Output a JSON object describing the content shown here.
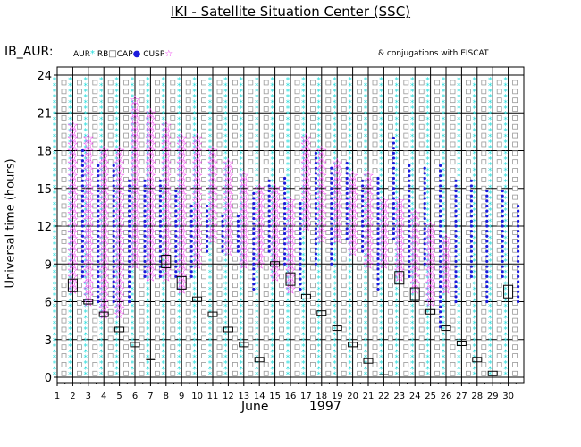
{
  "title": "IKI - Satellite Situation Center (SSC)",
  "header_label": "IB_AUR:",
  "legend": {
    "aur": "AUR",
    "rb": "RB",
    "cap": "CAP",
    "cusp": "CUSP",
    "colors": {
      "aur": "#22dddd",
      "rb": "#999999",
      "cap": "#1a1adc",
      "cusp": "#ee22ee"
    }
  },
  "conjugations_note": "& conjugations with EISCAT",
  "chart_data": {
    "type": "scatter",
    "ylabel": "Universal time (hours)",
    "xlabel_month": "June",
    "xlabel_year": "1997",
    "x_ticks": [
      1,
      2,
      3,
      4,
      5,
      6,
      7,
      8,
      9,
      10,
      11,
      12,
      13,
      14,
      15,
      16,
      17,
      18,
      19,
      20,
      21,
      22,
      23,
      24,
      25,
      26,
      27,
      28,
      29,
      30
    ],
    "y_ticks": [
      0,
      3,
      6,
      9,
      12,
      15,
      18,
      21,
      24
    ],
    "xlim": [
      1,
      31
    ],
    "ylim": [
      0,
      24
    ],
    "grid": true,
    "cusp_intervals": [
      {
        "day": 2,
        "start": 7,
        "end": 20
      },
      {
        "day": 3,
        "start": 6,
        "end": 19
      },
      {
        "day": 4,
        "start": 5,
        "end": 18
      },
      {
        "day": 5,
        "start": 5,
        "end": 18
      },
      {
        "day": 6,
        "start": 9,
        "end": 22
      },
      {
        "day": 7,
        "start": 8,
        "end": 21
      },
      {
        "day": 8,
        "start": 8,
        "end": 20
      },
      {
        "day": 9,
        "start": 7,
        "end": 19
      },
      {
        "day": 10,
        "start": 9,
        "end": 19
      },
      {
        "day": 11,
        "start": 11,
        "end": 18
      },
      {
        "day": 12,
        "start": 10,
        "end": 17
      },
      {
        "day": 13,
        "start": 9,
        "end": 16
      },
      {
        "day": 14,
        "start": 9,
        "end": 15
      },
      {
        "day": 15,
        "start": 8,
        "end": 15
      },
      {
        "day": 16,
        "start": 7,
        "end": 14
      },
      {
        "day": 17,
        "start": 12,
        "end": 19
      },
      {
        "day": 18,
        "start": 11,
        "end": 18
      },
      {
        "day": 19,
        "start": 11,
        "end": 17
      },
      {
        "day": 20,
        "start": 10,
        "end": 16
      },
      {
        "day": 21,
        "start": 9,
        "end": 16
      },
      {
        "day": 22,
        "start": 9,
        "end": 14
      },
      {
        "day": 23,
        "start": 8,
        "end": 14
      },
      {
        "day": 24,
        "start": 7,
        "end": 13
      },
      {
        "day": 25,
        "start": 6,
        "end": 12
      },
      {
        "day": 26,
        "start": 7,
        "end": 11
      }
    ],
    "cap_intervals": [
      {
        "day": 2,
        "start": 8,
        "end": 18
      },
      {
        "day": 3,
        "start": 6,
        "end": 17
      },
      {
        "day": 4,
        "start": 6,
        "end": 17
      },
      {
        "day": 5,
        "start": 6,
        "end": 16
      },
      {
        "day": 6,
        "start": 8,
        "end": 16
      },
      {
        "day": 7,
        "start": 8,
        "end": 16
      },
      {
        "day": 8,
        "start": 8,
        "end": 15
      },
      {
        "day": 9,
        "start": 8,
        "end": 14
      },
      {
        "day": 10,
        "start": 10,
        "end": 14
      },
      {
        "day": 11,
        "start": 10,
        "end": 13
      },
      {
        "day": 12,
        "start": 10,
        "end": 13
      },
      {
        "day": 13,
        "start": 7,
        "end": 15
      },
      {
        "day": 14,
        "start": 10,
        "end": 16
      },
      {
        "day": 15,
        "start": 9,
        "end": 16
      },
      {
        "day": 16,
        "start": 7,
        "end": 14
      },
      {
        "day": 17,
        "start": 9,
        "end": 18
      },
      {
        "day": 18,
        "start": 9,
        "end": 17
      },
      {
        "day": 19,
        "start": 11,
        "end": 17
      },
      {
        "day": 20,
        "start": 10,
        "end": 16
      },
      {
        "day": 21,
        "start": 7,
        "end": 16
      },
      {
        "day": 22,
        "start": 11,
        "end": 19
      },
      {
        "day": 23,
        "start": 8,
        "end": 17
      },
      {
        "day": 24,
        "start": 9,
        "end": 17
      },
      {
        "day": 25,
        "start": 4,
        "end": 17
      },
      {
        "day": 26,
        "start": 6,
        "end": 16
      },
      {
        "day": 27,
        "start": 8,
        "end": 16
      },
      {
        "day": 28,
        "start": 6,
        "end": 15
      },
      {
        "day": 29,
        "start": 8,
        "end": 15
      },
      {
        "day": 30,
        "start": 6,
        "end": 14
      }
    ],
    "eiscat_conjugations": [
      {
        "day": 2,
        "time": 7.3,
        "size": "large"
      },
      {
        "day": 3,
        "time": 6.0,
        "size": "small"
      },
      {
        "day": 4,
        "time": 5.0,
        "size": "small"
      },
      {
        "day": 5,
        "time": 3.8,
        "size": "small"
      },
      {
        "day": 6,
        "time": 2.6,
        "size": "small"
      },
      {
        "day": 7,
        "time": 1.4,
        "size": "line"
      },
      {
        "day": 8,
        "time": 9.2,
        "size": "large"
      },
      {
        "day": 9,
        "time": 7.5,
        "size": "large"
      },
      {
        "day": 10,
        "time": 6.2,
        "size": "small"
      },
      {
        "day": 11,
        "time": 5.0,
        "size": "small"
      },
      {
        "day": 12,
        "time": 3.8,
        "size": "small"
      },
      {
        "day": 13,
        "time": 2.6,
        "size": "small"
      },
      {
        "day": 14,
        "time": 1.4,
        "size": "small"
      },
      {
        "day": 15,
        "time": 9.0,
        "size": "small"
      },
      {
        "day": 16,
        "time": 7.8,
        "size": "large"
      },
      {
        "day": 17,
        "time": 6.4,
        "size": "small"
      },
      {
        "day": 18,
        "time": 5.1,
        "size": "small"
      },
      {
        "day": 19,
        "time": 3.9,
        "size": "small"
      },
      {
        "day": 20,
        "time": 2.6,
        "size": "small"
      },
      {
        "day": 21,
        "time": 1.3,
        "size": "small"
      },
      {
        "day": 22,
        "time": 0.2,
        "size": "line"
      },
      {
        "day": 23,
        "time": 7.9,
        "size": "large"
      },
      {
        "day": 24,
        "time": 6.6,
        "size": "large"
      },
      {
        "day": 25,
        "time": 5.2,
        "size": "small"
      },
      {
        "day": 26,
        "time": 3.9,
        "size": "small"
      },
      {
        "day": 27,
        "time": 2.7,
        "size": "small"
      },
      {
        "day": 28,
        "time": 1.4,
        "size": "small"
      },
      {
        "day": 29,
        "time": 0.3,
        "size": "small"
      },
      {
        "day": 30,
        "time": 6.8,
        "size": "large"
      }
    ]
  }
}
